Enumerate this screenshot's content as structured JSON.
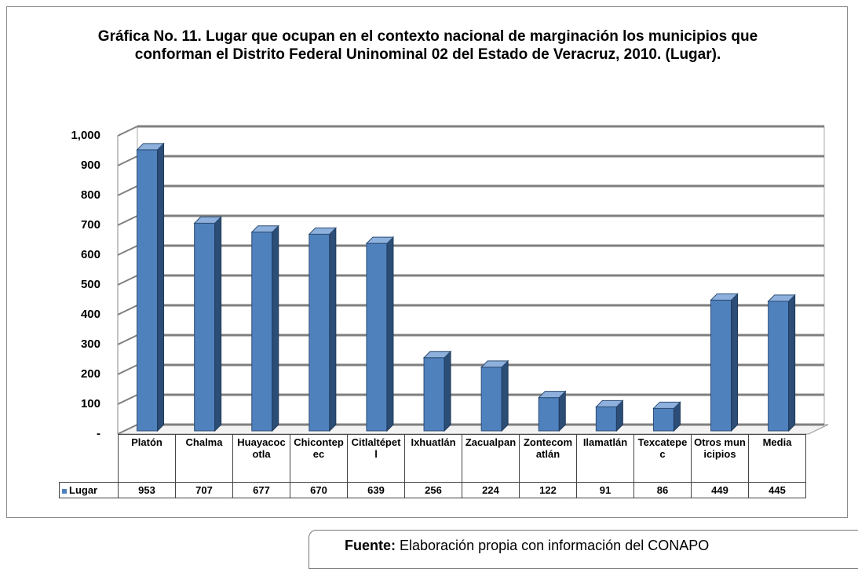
{
  "chart_data": {
    "type": "bar3d",
    "title": "Gráfica No. 11. Lugar que ocupan en el contexto nacional de marginación los municipios que conforman el Distrito Federal Uninominal 02 del Estado de Veracruz, 2010. (Lugar).",
    "categories": [
      "Platón",
      "Chalma",
      "Huayacocotla",
      "Chicontepec",
      "Citlaltépetl",
      "Ixhuatlán",
      "Zacualpan",
      "Zontecomatlán",
      "Ilamatlán",
      "Texcatepec",
      "Otros municipios",
      "Media"
    ],
    "series": [
      {
        "name": "Lugar",
        "color": "#4f81bd",
        "values": [
          953,
          707,
          677,
          670,
          639,
          256,
          224,
          122,
          91,
          86,
          449,
          445
        ]
      }
    ],
    "ylim": [
      0,
      1000
    ],
    "yticks": [
      {
        "value": 0,
        "label": "-"
      },
      100,
      200,
      300,
      400,
      500,
      600,
      700,
      800,
      900,
      {
        "value": 1000,
        "label": "1,000"
      }
    ],
    "grid": true,
    "source_label": "Fuente:",
    "source": "Elaboración propia con información del CONAPO"
  }
}
